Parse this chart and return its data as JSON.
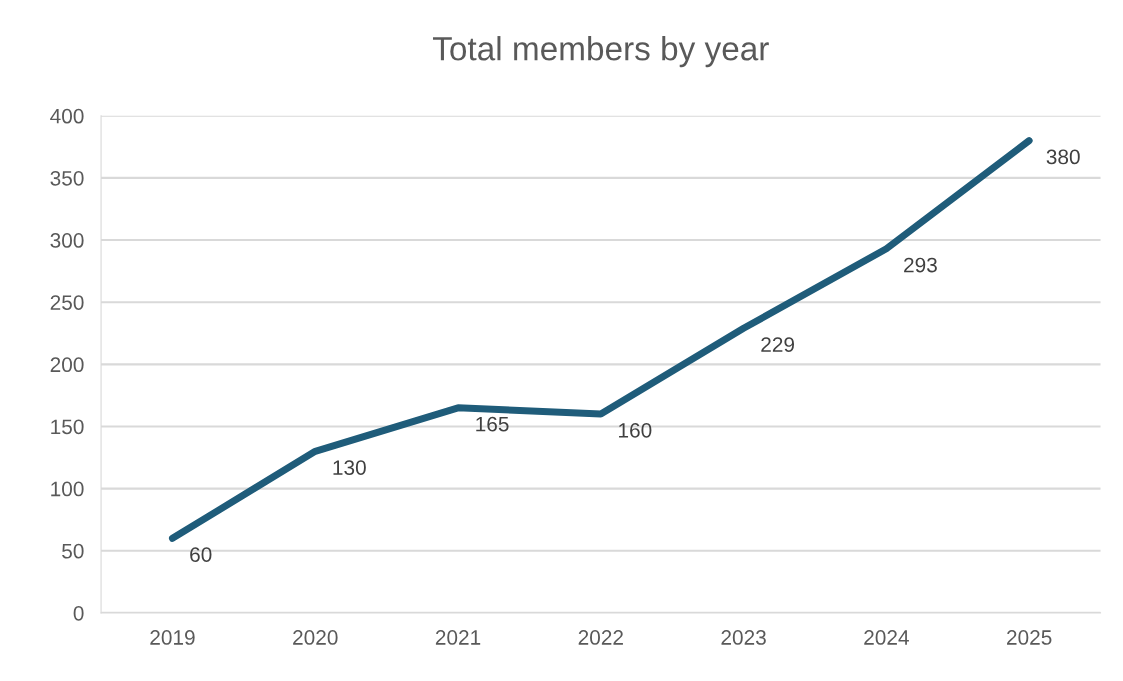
{
  "chart_data": {
    "type": "line",
    "title": "Total members by year",
    "categories": [
      "2019",
      "2020",
      "2021",
      "2022",
      "2023",
      "2024",
      "2025"
    ],
    "series": [
      {
        "color": "#1f5c7a",
        "values": [
          60,
          130,
          165,
          160,
          229,
          293,
          380
        ]
      }
    ],
    "ylim": [
      0,
      400
    ],
    "yticks": [
      0,
      50,
      100,
      150,
      200,
      250,
      300,
      350,
      400
    ],
    "grid": "y",
    "data_labels": true,
    "marker": "none",
    "line_style": "solid"
  }
}
